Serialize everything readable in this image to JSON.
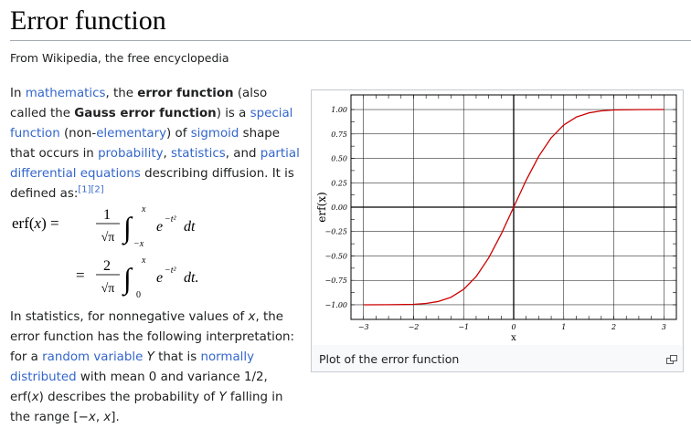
{
  "page": {
    "title": "Error function",
    "tagline": "From Wikipedia, the free encyclopedia"
  },
  "intro": {
    "t1": "In ",
    "link_mathematics": "mathematics",
    "t2": ", the ",
    "b1": "error function",
    "t3": " (also called the ",
    "b2": "Gauss error function",
    "t4": ") is a ",
    "link_special_function": "special function",
    "t5": " (non-",
    "link_elementary": "elementary",
    "t6": ") of ",
    "link_sigmoid": "sigmoid",
    "t7": " shape that occurs in ",
    "link_probability": "probability",
    "t8": ", ",
    "link_statistics": "statistics",
    "t9": ", and ",
    "link_pde": "partial differential equations",
    "t10": " describing diffusion. It is defined as:",
    "ref1": "[1]",
    "ref2": "[2]"
  },
  "formula": {
    "lhs": "erf(",
    "lhs_var": "x",
    "lhs_close": ") =",
    "eq2": "=",
    "num1": "1",
    "num2": "2",
    "sqrt_pi": "√π",
    "int": "∫",
    "up_limit": "x",
    "low_limit1": "−x",
    "low_limit2": "0",
    "integrand": "e",
    "exponent": "−t²",
    "dt1": "dt",
    "dt2": "dt."
  },
  "stats_para": {
    "t1": "In statistics, for nonnegative values of ",
    "x1": "x",
    "t2": ", the error function has the following interpretation: for a ",
    "link_random_variable": "random variable",
    "t3": " ",
    "Y1": "Y",
    "t4": " that is ",
    "link_normally_distributed": "normally distributed",
    "t5": " with mean 0 and variance 1/2, erf(",
    "x2": "x",
    "t6": ") describes the probability of ",
    "Y2": "Y",
    "t7": " falling in the range [−",
    "x3": "x",
    "t8": ", ",
    "x4": "x",
    "t9": "]."
  },
  "figure": {
    "caption": "Plot of the error function",
    "enlarge_icon": "enlarge-icon"
  },
  "chart_data": {
    "type": "line",
    "title": "",
    "xlabel": "x",
    "ylabel": "erf(x)",
    "xlim": [
      -3.25,
      3.25
    ],
    "ylim": [
      -1.15,
      1.15
    ],
    "xticks": [
      "−3",
      "−2",
      "−1",
      "0",
      "1",
      "2",
      "3"
    ],
    "yticks": [
      "1.00",
      "0.75",
      "0.50",
      "0.25",
      "0.00",
      "−0.25",
      "−0.50",
      "−0.75",
      "−1.00"
    ],
    "grid": true,
    "series": [
      {
        "color": "#cc0000",
        "x": [
          -3,
          -2.5,
          -2,
          -1.75,
          -1.5,
          -1.25,
          -1,
          -0.75,
          -0.5,
          -0.25,
          0,
          0.25,
          0.5,
          0.75,
          1,
          1.25,
          1.5,
          1.75,
          2,
          2.5,
          3
        ],
        "y": [
          -1.0,
          -0.9996,
          -0.9953,
          -0.9867,
          -0.9661,
          -0.9229,
          -0.8427,
          -0.7112,
          -0.5205,
          -0.2763,
          0,
          0.2763,
          0.5205,
          0.7112,
          0.8427,
          0.9229,
          0.9661,
          0.9867,
          0.9953,
          0.9996,
          1.0
        ]
      }
    ]
  }
}
